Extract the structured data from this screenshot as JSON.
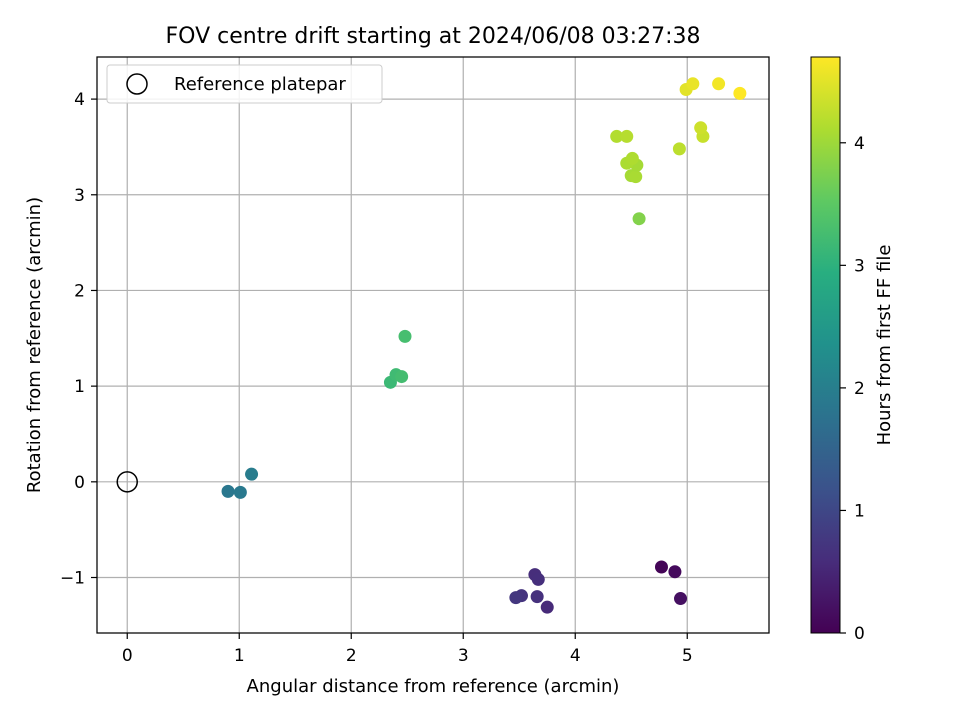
{
  "chart_data": {
    "type": "scatter",
    "title": "FOV centre drift starting at 2024/06/08 03:27:38",
    "xlabel": "Angular distance from reference (arcmin)",
    "ylabel": "Rotation from reference (arcmin)",
    "xlim": [
      -0.27,
      5.73
    ],
    "ylim": [
      -1.58,
      4.44
    ],
    "xticks": [
      0,
      1,
      2,
      3,
      4,
      5
    ],
    "xtick_labels": [
      "0",
      "1",
      "2",
      "3",
      "4",
      "5"
    ],
    "yticks": [
      -1,
      0,
      1,
      2,
      3,
      4
    ],
    "ytick_labels": [
      "−1",
      "0",
      "1",
      "2",
      "3",
      "4"
    ],
    "grid": true,
    "legend": {
      "position": "upper-left",
      "entries": [
        "Reference platepar"
      ]
    },
    "reference_point": {
      "x": 0,
      "y": 0,
      "marker": "open-circle"
    },
    "colorbar": {
      "label": "Hours from first FF file",
      "range": [
        0,
        4.7
      ],
      "ticks": [
        0,
        1,
        2,
        3,
        4
      ],
      "tick_labels": [
        "0",
        "1",
        "2",
        "3",
        "4"
      ],
      "colormap": "viridis"
    },
    "points": [
      {
        "x": 4.77,
        "y": -0.89,
        "c": 0.05
      },
      {
        "x": 4.89,
        "y": -0.94,
        "c": 0.12
      },
      {
        "x": 4.94,
        "y": -1.22,
        "c": 0.2
      },
      {
        "x": 3.75,
        "y": -1.31,
        "c": 0.55
      },
      {
        "x": 3.64,
        "y": -0.97,
        "c": 0.6
      },
      {
        "x": 3.67,
        "y": -1.02,
        "c": 0.62
      },
      {
        "x": 3.66,
        "y": -1.2,
        "c": 0.65
      },
      {
        "x": 3.52,
        "y": -1.19,
        "c": 0.7
      },
      {
        "x": 3.47,
        "y": -1.21,
        "c": 0.75
      },
      {
        "x": 0.9,
        "y": -0.1,
        "c": 1.85
      },
      {
        "x": 1.01,
        "y": -0.11,
        "c": 1.9
      },
      {
        "x": 1.11,
        "y": 0.08,
        "c": 1.95
      },
      {
        "x": 2.35,
        "y": 1.04,
        "c": 3.15
      },
      {
        "x": 2.4,
        "y": 1.12,
        "c": 3.2
      },
      {
        "x": 2.45,
        "y": 1.1,
        "c": 3.25
      },
      {
        "x": 2.48,
        "y": 1.52,
        "c": 3.28
      },
      {
        "x": 4.57,
        "y": 2.75,
        "c": 3.8
      },
      {
        "x": 4.5,
        "y": 3.2,
        "c": 4.05
      },
      {
        "x": 4.54,
        "y": 3.19,
        "c": 4.08
      },
      {
        "x": 4.55,
        "y": 3.31,
        "c": 4.05
      },
      {
        "x": 4.46,
        "y": 3.33,
        "c": 4.1
      },
      {
        "x": 4.51,
        "y": 3.38,
        "c": 4.12
      },
      {
        "x": 4.37,
        "y": 3.61,
        "c": 4.15
      },
      {
        "x": 4.46,
        "y": 3.61,
        "c": 4.18
      },
      {
        "x": 4.93,
        "y": 3.48,
        "c": 4.22
      },
      {
        "x": 5.14,
        "y": 3.61,
        "c": 4.3
      },
      {
        "x": 5.12,
        "y": 3.7,
        "c": 4.35
      },
      {
        "x": 4.99,
        "y": 4.1,
        "c": 4.5
      },
      {
        "x": 5.05,
        "y": 4.16,
        "c": 4.55
      },
      {
        "x": 5.28,
        "y": 4.16,
        "c": 4.62
      },
      {
        "x": 5.47,
        "y": 4.06,
        "c": 4.7
      }
    ]
  }
}
